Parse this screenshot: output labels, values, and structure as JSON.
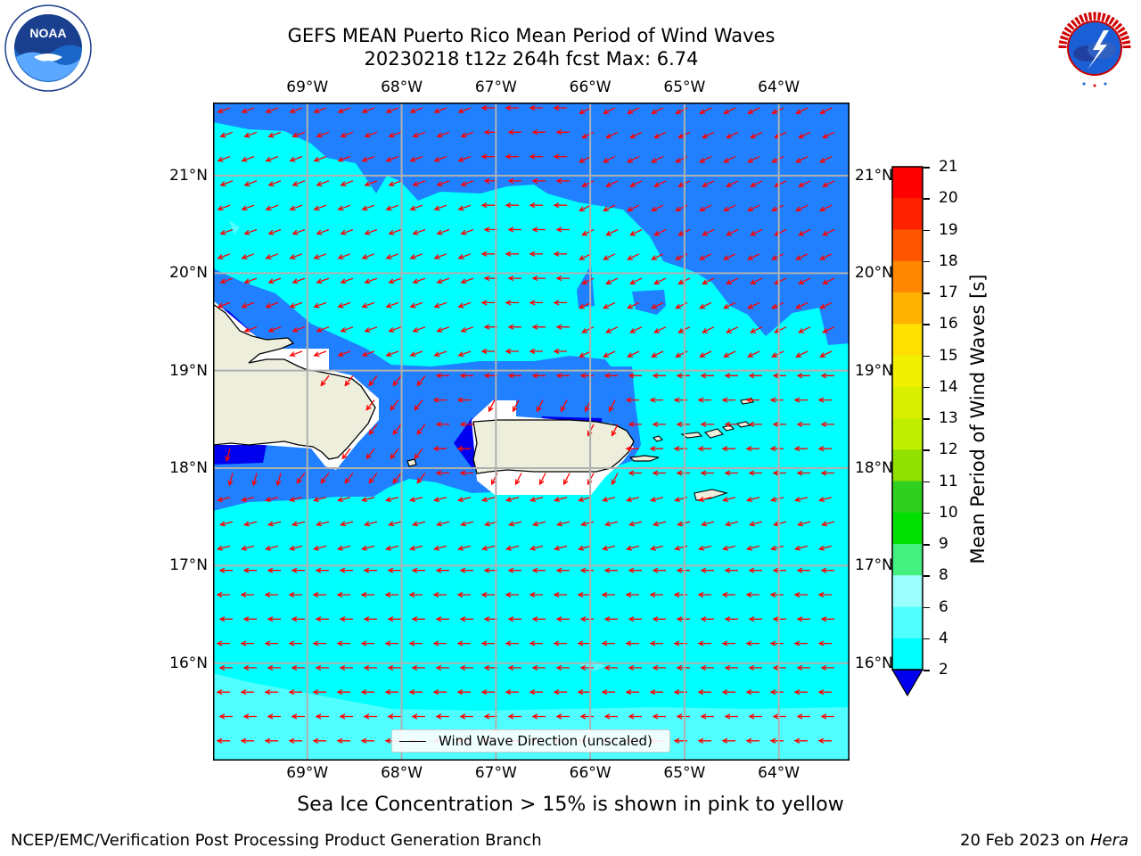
{
  "title_line1": "GEFS MEAN Puerto Rico Mean Period of Wind Waves",
  "title_line2": "20230218 t12z 264h fcst   Max: 6.74",
  "lon_labels": [
    "69°W",
    "68°W",
    "67°W",
    "66°W",
    "65°W",
    "64°W"
  ],
  "lat_labels": [
    "21°N",
    "20°N",
    "19°N",
    "18°N",
    "17°N",
    "16°N"
  ],
  "legend_label": "Wind Wave Direction (unscaled)",
  "colorbar": {
    "label": "Mean Period of Wind Waves [s]",
    "ticks": [
      "21",
      "20",
      "19",
      "18",
      "17",
      "16",
      "15",
      "14",
      "13",
      "12",
      "11",
      "10",
      "9",
      "8",
      "6",
      "4",
      "2"
    ],
    "colors": [
      "#ff0000",
      "#ff2200",
      "#ff5500",
      "#ff8800",
      "#ffb300",
      "#ffe000",
      "#f0f000",
      "#d8f000",
      "#c0f000",
      "#90e000",
      "#30d020",
      "#00e000",
      "#44f080",
      "#9cffff",
      "#50ffff",
      "#00ffff",
      "#2080ff"
    ],
    "extend_color": "#0000ee"
  },
  "map": {
    "lon_range": [
      -70.0,
      -63.25
    ],
    "lat_range": [
      15.0,
      21.75
    ],
    "colors": {
      "deep": "#0000ee",
      "blue": "#2080ff",
      "cyan": "#00ffff",
      "light_cyan": "#50ffff",
      "land": "#eeeedd",
      "gap": "#ffffff",
      "arrow": "#ff0000",
      "grid": "#b0b0b0"
    }
  },
  "logos": {
    "left": "NOAA",
    "right": "NATIONAL WEATHER SERVICE"
  },
  "sub_note": "Sea Ice Concentration > 15% is shown in pink to yellow",
  "footer_left": "NCEP/EMC/Verification Post Processing Product Generation Branch",
  "footer_right_date": "20 Feb 2023 on",
  "footer_right_machine": "Hera"
}
